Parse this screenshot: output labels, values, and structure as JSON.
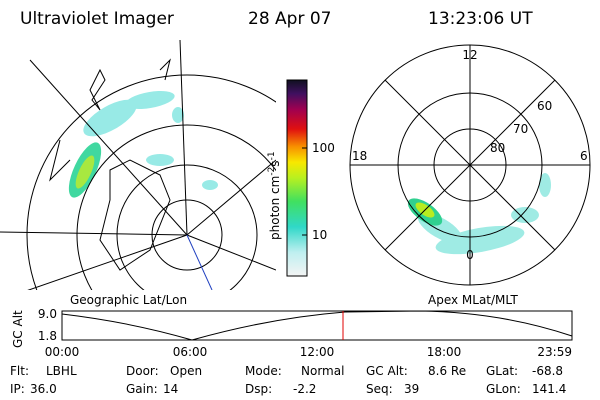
{
  "header": {
    "title": "Ultraviolet Imager",
    "date": "28 Apr 07",
    "time": "13:23:06 UT"
  },
  "colorbar": {
    "ticks": [
      "100",
      "10"
    ],
    "unit": {
      "base": "photon cm",
      "exp1": "-2",
      "s": "s",
      "exp2": "-1"
    }
  },
  "left_map": {
    "caption": "Geographic Lat/Lon"
  },
  "right_map": {
    "caption": "Apex MLat/MLT",
    "mlt_labels": [
      "12",
      "18",
      "6",
      "0"
    ],
    "lat_labels": [
      "60",
      "70",
      "80"
    ]
  },
  "altitude_plot": {
    "axis_label": "GC Alt",
    "y_labels": [
      "9.0",
      "1.8"
    ],
    "x_labels": [
      "00:00",
      "06:00",
      "12:00",
      "18:00",
      "23:59"
    ]
  },
  "footer": {
    "rows": [
      [
        {
          "label": "Flt:",
          "value": "LBHL"
        },
        {
          "label": "Door:",
          "value": "Open"
        },
        {
          "label": "Mode:",
          "value": "Normal"
        },
        {
          "label": "GC Alt:",
          "value": "8.6 Re"
        },
        {
          "label": "GLat:",
          "value": "-68.8"
        }
      ],
      [
        {
          "label": "IP:",
          "value": "36.0"
        },
        {
          "label": "Gain:",
          "value": "14"
        },
        {
          "label": "Dsp:",
          "value": "-2.2"
        },
        {
          "label": "Seq:",
          "value": "39"
        },
        {
          "label": "GLon:",
          "value": "141.4"
        }
      ]
    ]
  }
}
